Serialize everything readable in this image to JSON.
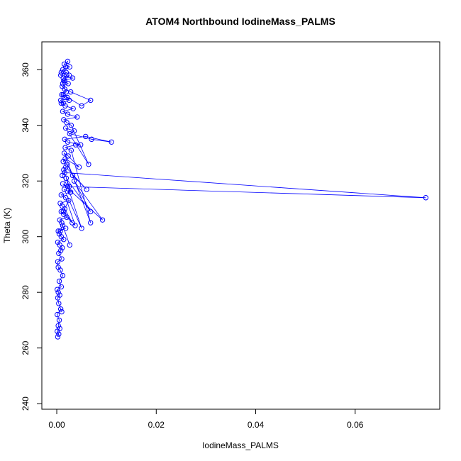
{
  "chart_data": {
    "type": "scatter",
    "title": "ATOM4 Northbound IodineMass_PALMS",
    "xlabel": "IodineMass_PALMS",
    "ylabel": "Theta (K)",
    "xlim": [
      -0.003,
      0.077
    ],
    "ylim": [
      238,
      370
    ],
    "xticks": [
      0.0,
      0.02,
      0.04,
      0.06
    ],
    "xtick_labels": [
      "0.00",
      "0.02",
      "0.04",
      "0.06"
    ],
    "yticks": [
      240,
      260,
      280,
      300,
      320,
      340,
      360
    ],
    "ytick_labels": [
      "240",
      "260",
      "280",
      "300",
      "320",
      "340",
      "360"
    ],
    "grid": false,
    "line_connected": true,
    "color": "#0000ff",
    "series": [
      {
        "x": [
          0.0002,
          0.0004,
          0.0001,
          0.0006,
          0.0003,
          0.0005,
          0.0001,
          0.0008,
          0.001,
          0.0004,
          0.0002,
          0.0006,
          0.0003,
          0.0001,
          0.0009,
          0.0005,
          0.0012,
          0.0007,
          0.0003,
          0.0002,
          0.001,
          0.0004,
          0.0008,
          0.0011,
          0.0006,
          0.0002,
          0.0014,
          0.0009,
          0.0005,
          0.0003,
          0.0018,
          0.0007,
          0.0012,
          0.0026,
          0.001,
          0.0006,
          0.002,
          0.0014,
          0.0009,
          0.0031,
          0.0016,
          0.0011,
          0.0007,
          0.0024,
          0.0013,
          0.0037,
          0.0018,
          0.0009,
          0.0028,
          0.0015,
          0.005,
          0.0022,
          0.0012,
          0.0092,
          0.0035,
          0.0068,
          0.0019,
          0.0027,
          0.0011,
          0.0016,
          0.0742,
          0.0025,
          0.0014,
          0.0018,
          0.006,
          0.0032,
          0.0021,
          0.0013,
          0.0017,
          0.0045,
          0.0023,
          0.0015,
          0.0068,
          0.0029,
          0.0017,
          0.0038,
          0.0048,
          0.0022,
          0.0016,
          0.0058,
          0.011,
          0.007,
          0.0026,
          0.0035,
          0.0018,
          0.0064,
          0.0029,
          0.002,
          0.0014,
          0.0041,
          0.0022,
          0.0012,
          0.0033,
          0.0017,
          0.0009,
          0.0025,
          0.0021,
          0.0013,
          0.005,
          0.0068,
          0.0028,
          0.0016,
          0.0011,
          0.0023,
          0.0014,
          0.0032,
          0.0008,
          0.0019,
          0.0012,
          0.0026,
          0.0015,
          0.0022,
          0.0018,
          0.0009,
          0.002,
          0.0013,
          0.0025,
          0.0016,
          0.0012,
          0.0019,
          0.001,
          0.0015,
          0.0008,
          0.0013
        ],
        "y": [
          264,
          265,
          266,
          267,
          268,
          270,
          272,
          274,
          273,
          276,
          278,
          279,
          280,
          281,
          282,
          284,
          286,
          288,
          289,
          291,
          292,
          294,
          295,
          296,
          297,
          298,
          299,
          300,
          301,
          302,
          303,
          302,
          304,
          297,
          305,
          306,
          307,
          308,
          309,
          305,
          310,
          311,
          312,
          313,
          309,
          304,
          314,
          315,
          316,
          317,
          303,
          318,
          319,
          306,
          320,
          309,
          321,
          316,
          322,
          323,
          314,
          318,
          324,
          325,
          317,
          322,
          326,
          327,
          328,
          325,
          329,
          330,
          305,
          331,
          332,
          333,
          333,
          334,
          335,
          336,
          334,
          335,
          337,
          338,
          339,
          326,
          340,
          341,
          342,
          343,
          344,
          345,
          346,
          347,
          348,
          349,
          350,
          351,
          347,
          349,
          352,
          353,
          354,
          355,
          356,
          357,
          358,
          359,
          360,
          361,
          362,
          363,
          361,
          359,
          358,
          357,
          358,
          356,
          355,
          352,
          351,
          350,
          349,
          348
        ]
      }
    ]
  }
}
